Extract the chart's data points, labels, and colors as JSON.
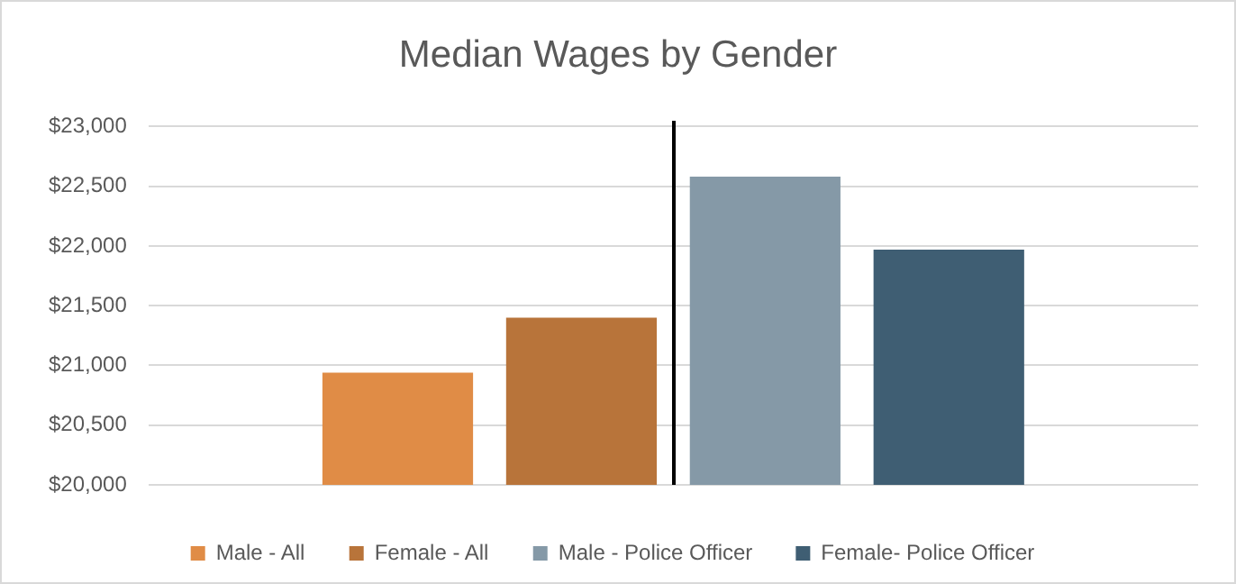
{
  "chart_data": {
    "type": "bar",
    "title": "Median Wages by Gender",
    "categories": [
      null
    ],
    "series": [
      {
        "name": "Male - All",
        "color": "#e08c46",
        "values": [
          20940
        ]
      },
      {
        "name": "Female - All",
        "color": "#b8743a",
        "values": [
          21400
        ]
      },
      {
        "name": "Male - Police Officer",
        "color": "#8599a7",
        "values": [
          22580
        ]
      },
      {
        "name": "Female- Police Officer",
        "color": "#3f5e73",
        "values": [
          21970
        ]
      }
    ],
    "ylim": [
      20000,
      23000
    ],
    "yticks": [
      {
        "value": 20000,
        "label": "$20,000"
      },
      {
        "value": 20500,
        "label": "$20,500"
      },
      {
        "value": 21000,
        "label": "$21,000"
      },
      {
        "value": 21500,
        "label": "$21,500"
      },
      {
        "value": 22000,
        "label": "$22,000"
      },
      {
        "value": 22500,
        "label": "$22,500"
      },
      {
        "value": 23000,
        "label": "$23,000"
      }
    ],
    "grid": "y",
    "legend": "bottom"
  }
}
